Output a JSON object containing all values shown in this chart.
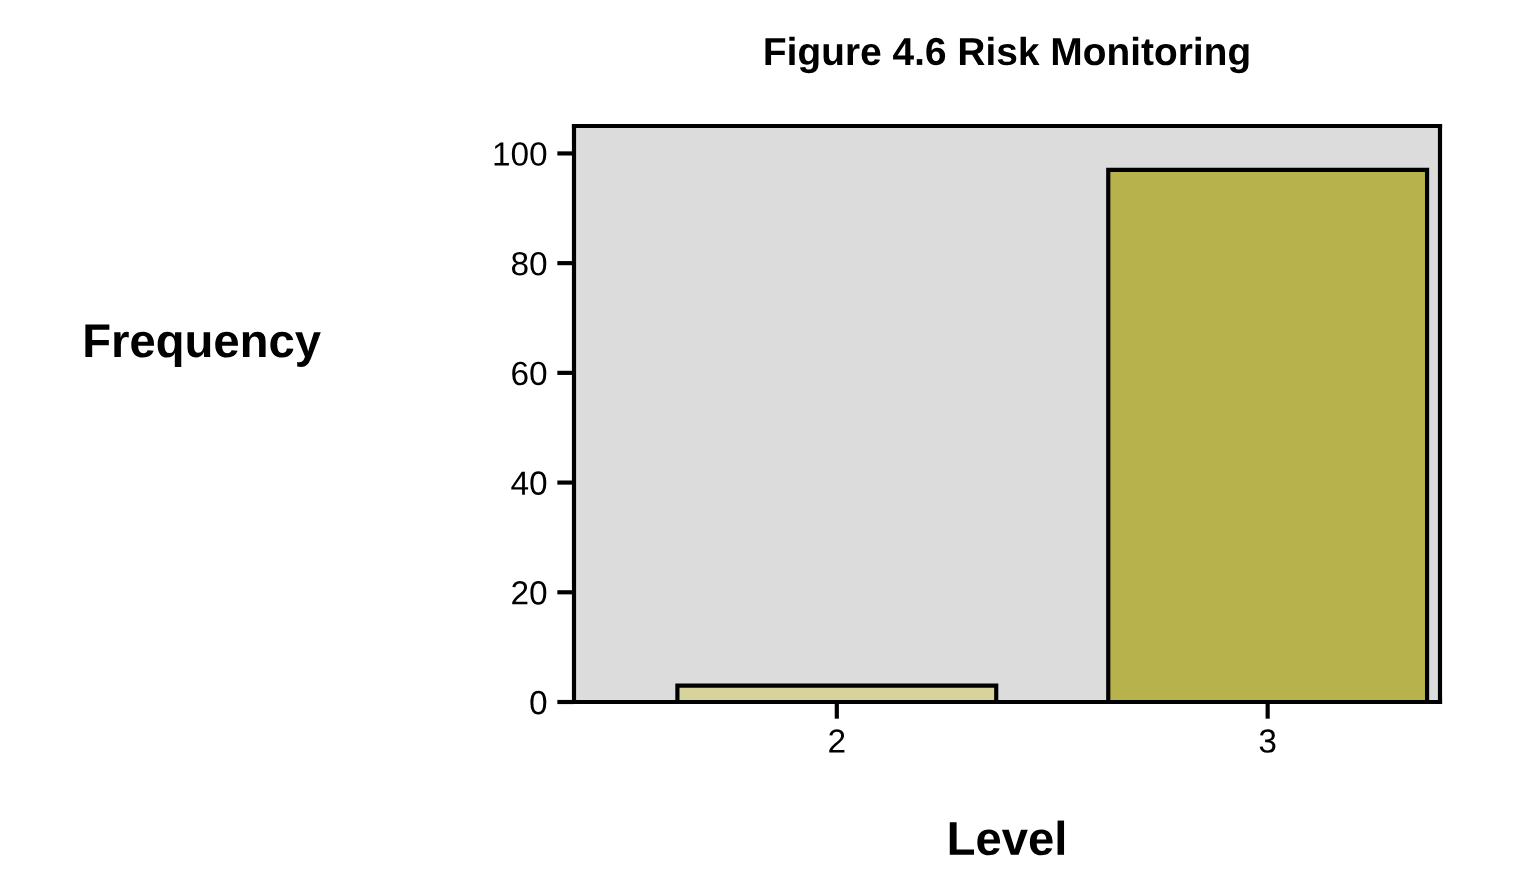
{
  "chart_data": {
    "type": "bar",
    "title": "Figure 4.6 Risk Monitoring",
    "xlabel": "Level",
    "ylabel": "Frequency",
    "categories": [
      "2",
      "3"
    ],
    "values": [
      3,
      97
    ],
    "colors": [
      "#d6d49a",
      "#b7b24c"
    ],
    "ylim": [
      0,
      105
    ],
    "yticks": [
      0,
      20,
      40,
      60,
      80,
      100
    ],
    "grid": false,
    "legend": false
  }
}
